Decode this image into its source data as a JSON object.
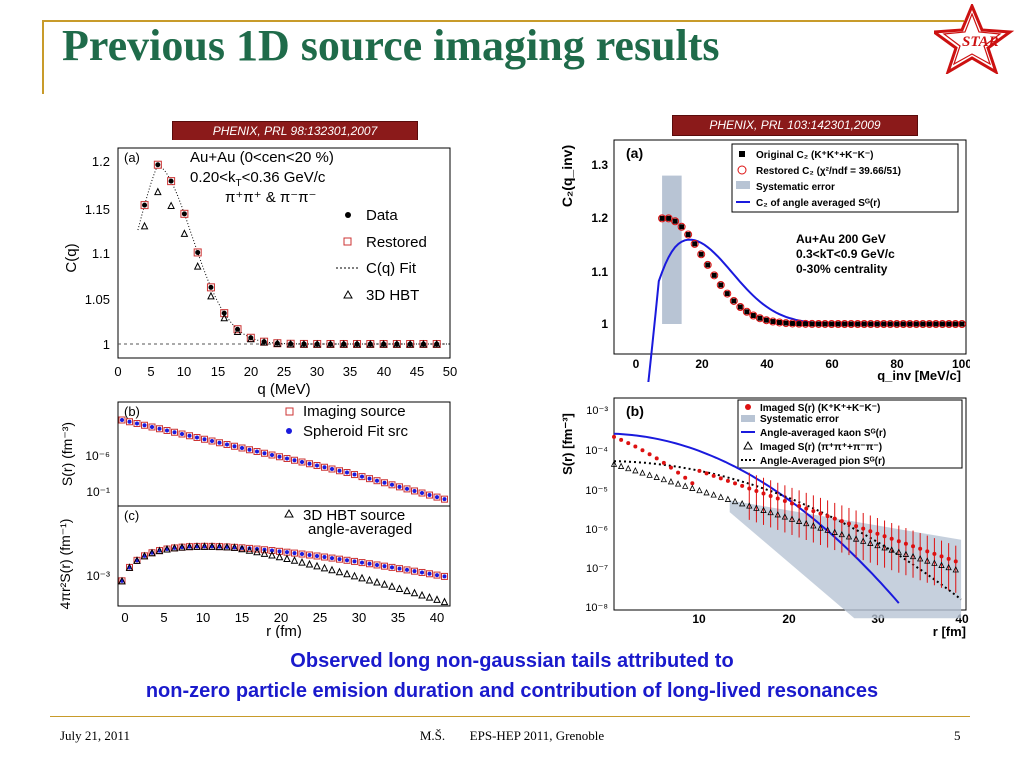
{
  "slide": {
    "title": "Previous 1D source imaging results",
    "logo_text": "STAR",
    "ref_left": "PHENIX, PRL 98:132301,2007",
    "ref_right": "PHENIX, PRL 103:142301,2009",
    "caption_line1": "Observed long non-gaussian tails attributed to",
    "caption_line2": "non-zero particle emision duration and contribution of long-lived resonances",
    "footer_date": "July 21, 2011",
    "footer_author": "M.Š.",
    "footer_event": "EPS-HEP 2011, Grenoble",
    "footer_page": "5"
  },
  "plots": {
    "left_top": {
      "panel": "(a)",
      "system": "Au+Au (0<cen<20 %)",
      "kt": "0.20<k",
      "kt_sub": "T",
      "kt_rest": "<0.36 GeV/c",
      "pions": "π⁺π⁺ & π⁻π⁻",
      "legend": [
        "Data",
        "Restored",
        "C(q) Fit",
        "3D HBT"
      ],
      "ylabel": "C(q)",
      "xlabel": "q (MeV)",
      "yticks": [
        "1.2",
        "1.15",
        "1.1",
        "1.05",
        "1"
      ],
      "xticks": [
        "0",
        "5",
        "10",
        "15",
        "20",
        "25",
        "30",
        "35",
        "40",
        "45",
        "50"
      ]
    },
    "left_mid": {
      "panel": "(b)",
      "legend": [
        "Imaging source",
        "Spheroid Fit src"
      ],
      "ylabel": "S(r) (fm⁻³)",
      "yticks": [
        "10⁻⁶",
        "10⁻¹"
      ]
    },
    "left_bot": {
      "panel": "(c)",
      "legend_line1": "3D HBT source",
      "legend_line2": "angle-averaged",
      "ylabel": "4πr²S(r) (fm⁻¹)",
      "yticks": [
        "10⁻³"
      ],
      "xlabel": "r (fm)",
      "xticks": [
        "0",
        "5",
        "10",
        "15",
        "20",
        "25",
        "30",
        "35",
        "40"
      ]
    },
    "right_top": {
      "panel": "(a)",
      "legend": [
        "Original C₂ (K⁺K⁺+K⁻K⁻)",
        "Restored C₂ (χ²/ndf = 39.66/51)",
        "Systematic error",
        "C₂ of angle averaged Sᴳ(r)"
      ],
      "info": [
        "Au+Au 200 GeV",
        "0.3<kT<0.9 GeV/c",
        "0-30% centrality"
      ],
      "ylabel": "C₂(q_inv)",
      "xlabel": "q_inv [MeV/c]",
      "yticks": [
        "1.3",
        "1.2",
        "1.1",
        "1"
      ],
      "xticks": [
        "0",
        "20",
        "40",
        "60",
        "80",
        "100"
      ]
    },
    "right_bot": {
      "panel": "(b)",
      "legend": [
        "Imaged S(r) (K⁺K⁺+K⁻K⁻)",
        "Systematic error",
        "Angle-averaged kaon Sᴳ(r)",
        "Imaged S(r) (π⁺π⁺+π⁻π⁻)",
        "Angle-Averaged pion Sᴳ(r)"
      ],
      "ylabel": "S(r) [fm⁻³]",
      "xlabel": "r [fm]",
      "yticks": [
        "10⁻³",
        "10⁻⁴",
        "10⁻⁵",
        "10⁻⁶",
        "10⁻⁷",
        "10⁻⁸"
      ],
      "xticks": [
        "10",
        "20",
        "30",
        "40"
      ]
    }
  },
  "colors": {
    "title": "#1f6b4a",
    "accent_rule": "#c89b2a",
    "ref_bg": "#8b1a1a",
    "caption": "#1a1acc",
    "kaon_red": "#dd1111",
    "fit_blue": "#1a1add",
    "syst_band": "#b8c4d4"
  }
}
